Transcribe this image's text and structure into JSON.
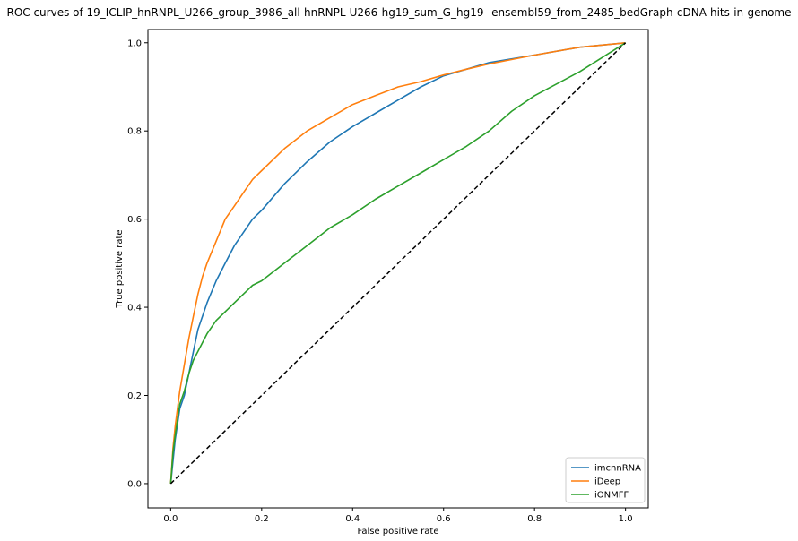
{
  "chart_data": {
    "type": "line",
    "title": "ROC curves of 19_ICLIP_hnRNPL_U266_group_3986_all-hnRNPL-U266-hg19_sum_G_hg19--ensembl59_from_2485_bedGraph-cDNA-hits-in-genome",
    "xlabel": "False positive rate",
    "ylabel": "True positive rate",
    "xlim": [
      -0.05,
      1.05
    ],
    "ylim": [
      -0.055,
      1.03
    ],
    "xticks": [
      "0.0",
      "0.2",
      "0.4",
      "0.6",
      "0.8",
      "1.0"
    ],
    "yticks": [
      "0.0",
      "0.2",
      "0.4",
      "0.6",
      "0.8",
      "1.0"
    ],
    "grid": false,
    "legend_position": "lower-right",
    "series": [
      {
        "name": "imcnnRNA",
        "color": "#1f77b4",
        "x": [
          0.0,
          0.005,
          0.01,
          0.02,
          0.03,
          0.04,
          0.05,
          0.06,
          0.07,
          0.08,
          0.1,
          0.12,
          0.14,
          0.16,
          0.18,
          0.2,
          0.25,
          0.3,
          0.35,
          0.4,
          0.45,
          0.5,
          0.55,
          0.6,
          0.65,
          0.7,
          0.8,
          0.9,
          1.0
        ],
        "y": [
          0.0,
          0.05,
          0.1,
          0.17,
          0.2,
          0.25,
          0.3,
          0.35,
          0.38,
          0.41,
          0.46,
          0.5,
          0.54,
          0.57,
          0.6,
          0.62,
          0.68,
          0.73,
          0.775,
          0.81,
          0.84,
          0.87,
          0.9,
          0.925,
          0.94,
          0.955,
          0.972,
          0.99,
          1.0
        ]
      },
      {
        "name": "iDeep",
        "color": "#ff7f0e",
        "x": [
          0.0,
          0.005,
          0.01,
          0.02,
          0.03,
          0.04,
          0.05,
          0.06,
          0.07,
          0.08,
          0.1,
          0.12,
          0.14,
          0.16,
          0.18,
          0.2,
          0.25,
          0.3,
          0.35,
          0.4,
          0.45,
          0.5,
          0.55,
          0.6,
          0.65,
          0.7,
          0.8,
          0.9,
          1.0
        ],
        "y": [
          0.0,
          0.08,
          0.13,
          0.21,
          0.27,
          0.33,
          0.38,
          0.43,
          0.47,
          0.5,
          0.55,
          0.6,
          0.63,
          0.66,
          0.69,
          0.71,
          0.76,
          0.8,
          0.83,
          0.86,
          0.88,
          0.9,
          0.912,
          0.927,
          0.94,
          0.952,
          0.972,
          0.99,
          1.0
        ]
      },
      {
        "name": "iONMFF",
        "color": "#2ca02c",
        "x": [
          0.0,
          0.005,
          0.01,
          0.02,
          0.03,
          0.04,
          0.05,
          0.06,
          0.08,
          0.1,
          0.12,
          0.14,
          0.16,
          0.18,
          0.2,
          0.25,
          0.3,
          0.35,
          0.4,
          0.45,
          0.5,
          0.55,
          0.6,
          0.65,
          0.7,
          0.75,
          0.8,
          0.9,
          1.0
        ],
        "y": [
          0.0,
          0.07,
          0.11,
          0.18,
          0.21,
          0.25,
          0.28,
          0.3,
          0.34,
          0.37,
          0.39,
          0.41,
          0.43,
          0.45,
          0.46,
          0.5,
          0.54,
          0.58,
          0.61,
          0.645,
          0.675,
          0.705,
          0.735,
          0.765,
          0.8,
          0.845,
          0.88,
          0.935,
          1.0
        ]
      },
      {
        "color": "#000000",
        "dashed": true,
        "x": [
          0.0,
          1.0
        ],
        "y": [
          0.0,
          1.0
        ]
      }
    ]
  }
}
